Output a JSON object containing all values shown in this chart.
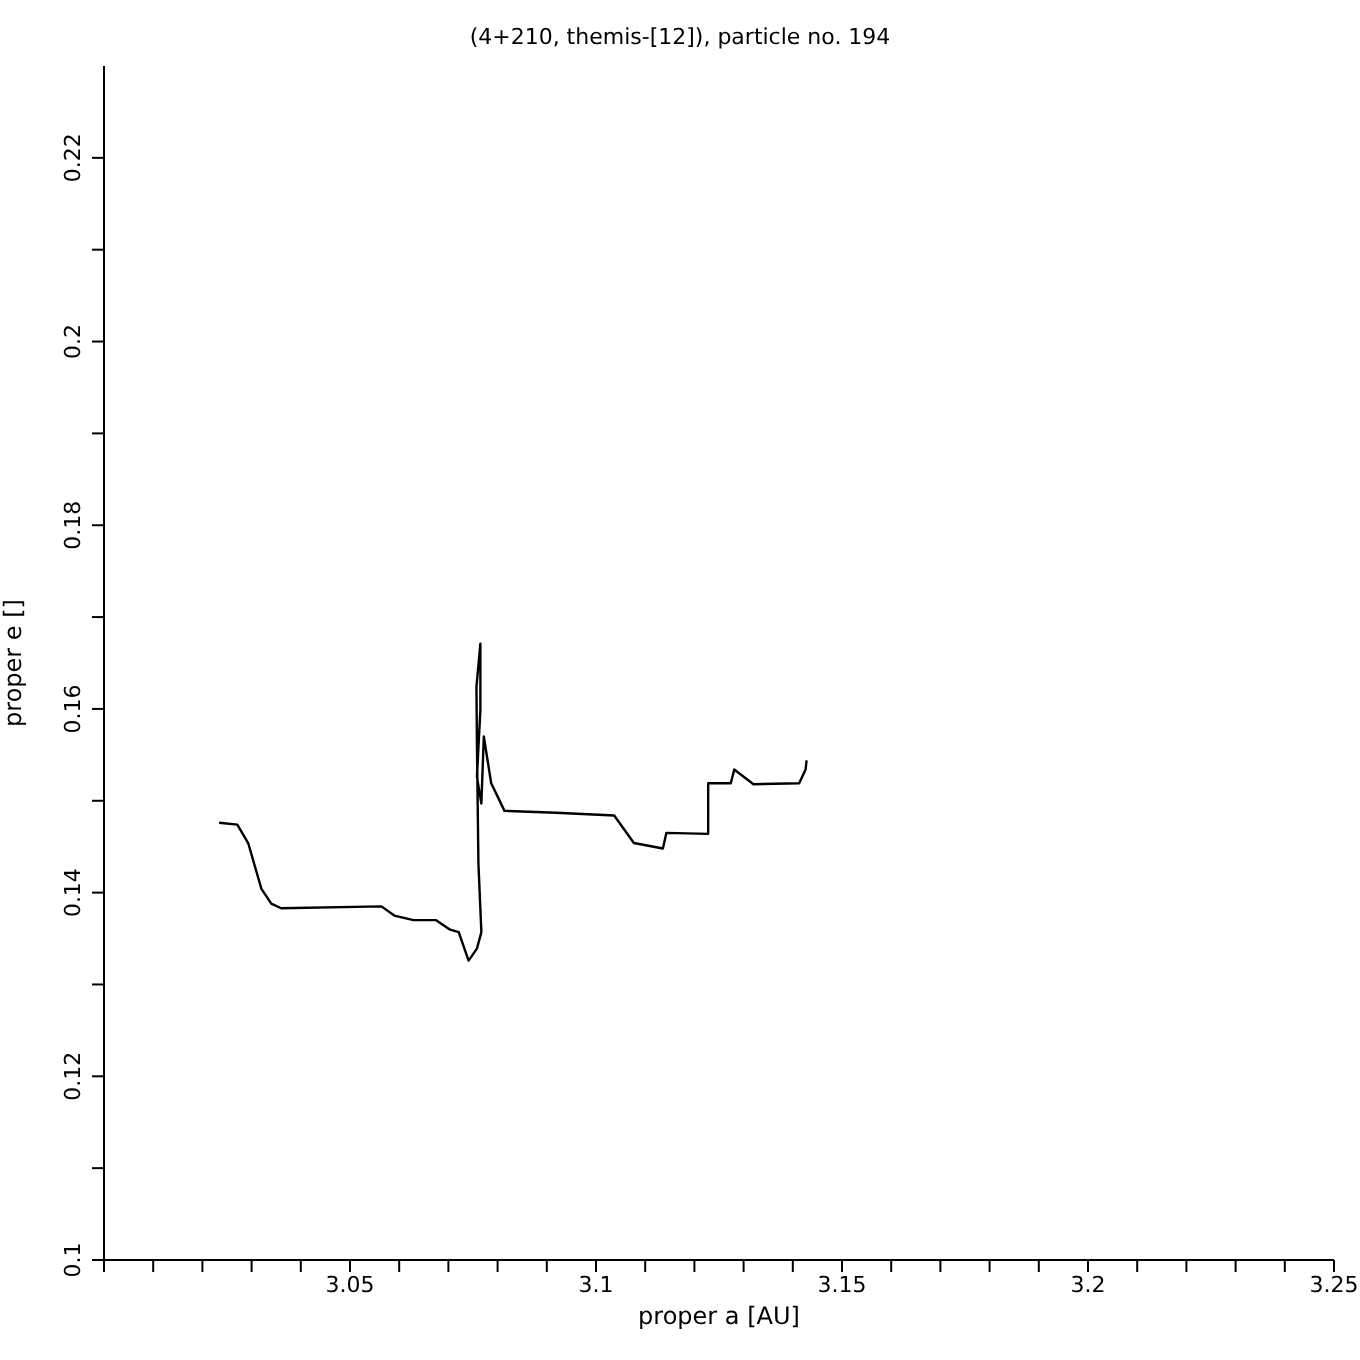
{
  "chart_data": {
    "type": "line",
    "title": "(4+210, themis-[12]), particle no. 194",
    "xlabel": "proper a [AU]",
    "ylabel": "proper e []",
    "xlim": [
      3.0,
      3.25
    ],
    "xticks": [
      {
        "value": 3.0,
        "label": null
      },
      {
        "value": 3.01,
        "label": null
      },
      {
        "value": 3.02,
        "label": null
      },
      {
        "value": 3.03,
        "label": null
      },
      {
        "value": 3.04,
        "label": null
      },
      3.05,
      {
        "value": 3.06,
        "label": null
      },
      {
        "value": 3.07,
        "label": null
      },
      {
        "value": 3.08,
        "label": null
      },
      {
        "value": 3.09,
        "label": null
      },
      3.1,
      {
        "value": 3.11,
        "label": null
      },
      {
        "value": 3.12,
        "label": null
      },
      {
        "value": 3.13,
        "label": null
      },
      {
        "value": 3.14,
        "label": null
      },
      3.15,
      {
        "value": 3.16,
        "label": null
      },
      {
        "value": 3.17,
        "label": null
      },
      {
        "value": 3.18,
        "label": null
      },
      {
        "value": 3.19,
        "label": null
      },
      3.2,
      {
        "value": 3.21,
        "label": null
      },
      {
        "value": 3.22,
        "label": null
      },
      {
        "value": 3.23,
        "label": null
      },
      {
        "value": 3.24,
        "label": null
      },
      3.25
    ],
    "ylim": [
      0.1,
      0.23
    ],
    "yticks": [
      0.1,
      {
        "value": 0.11,
        "label": null
      },
      0.12,
      {
        "value": 0.13,
        "label": null
      },
      0.14,
      {
        "value": 0.15,
        "label": null
      },
      0.16,
      {
        "value": 0.17,
        "label": null
      },
      0.18,
      {
        "value": 0.19,
        "label": null
      },
      0.2,
      {
        "value": 0.21,
        "label": null
      },
      0.22
    ],
    "grid": false,
    "marker": "none",
    "line_style": "solid",
    "series": [
      {
        "color": "#000000",
        "x": [
          3.0234,
          3.0271,
          3.0293,
          3.032,
          3.034,
          3.036,
          3.0564,
          3.059,
          3.0629,
          3.0675,
          3.0702,
          3.0721,
          3.0741,
          3.0758,
          3.0767,
          3.0761,
          3.0758,
          3.0757,
          3.0765,
          3.0765,
          3.0758,
          3.0767,
          3.0772,
          3.0787,
          3.0814,
          3.0919,
          3.1037,
          3.1077,
          3.1136,
          3.1143,
          3.1228,
          3.1228,
          3.1274,
          3.1281,
          3.132,
          3.1413,
          3.1426,
          3.1428
        ],
        "values": [
          0.1476,
          0.1474,
          0.1454,
          0.1404,
          0.1388,
          0.1383,
          0.1385,
          0.1375,
          0.137,
          0.137,
          0.136,
          0.1357,
          0.1326,
          0.1339,
          0.1357,
          0.1432,
          0.1562,
          0.1624,
          0.1671,
          0.1599,
          0.1526,
          0.1497,
          0.157,
          0.1519,
          0.1489,
          0.1487,
          0.1484,
          0.1454,
          0.1448,
          0.1465,
          0.1464,
          0.1519,
          0.1519,
          0.1534,
          0.1518,
          0.1519,
          0.1534,
          0.1544
        ]
      }
    ]
  }
}
